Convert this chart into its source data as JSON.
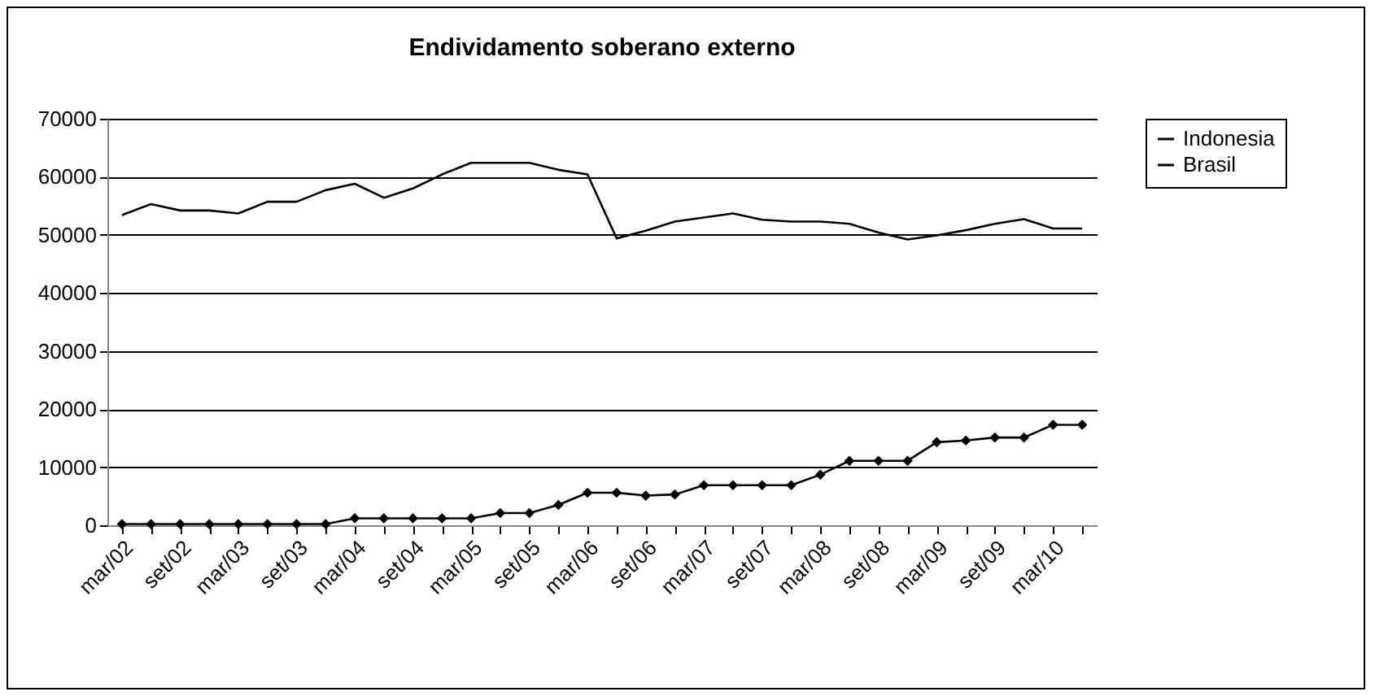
{
  "chart_data": {
    "type": "line",
    "title": "Endividamento soberano externo",
    "categories": [
      "mar/02",
      null,
      "set/02",
      null,
      "mar/03",
      null,
      "set/03",
      null,
      "mar/04",
      null,
      "set/04",
      null,
      "mar/05",
      null,
      "set/05",
      null,
      "mar/06",
      null,
      "set/06",
      null,
      "mar/07",
      null,
      "set/07",
      null,
      "mar/08",
      null,
      "set/08",
      null,
      "mar/09",
      null,
      "set/09",
      null,
      "mar/10",
      null
    ],
    "series": [
      {
        "name": "Indonesia",
        "color": "#000000",
        "marker": "diamond",
        "values": [
          200,
          200,
          200,
          200,
          200,
          200,
          200,
          200,
          1200,
          1200,
          1200,
          1200,
          1200,
          2100,
          2100,
          3500,
          5600,
          5600,
          5100,
          5300,
          6900,
          6900,
          6900,
          6900,
          8700,
          11100,
          11100,
          11100,
          14300,
          14600,
          15100,
          15100,
          17300,
          17300
        ]
      },
      {
        "name": "Brasil",
        "color": "#000000",
        "values": [
          53400,
          55300,
          54200,
          54200,
          53700,
          55700,
          55700,
          57700,
          58800,
          56400,
          58000,
          60400,
          62400,
          62400,
          62400,
          61200,
          60400,
          49400,
          50700,
          52300,
          53000,
          53700,
          52600,
          52300,
          52300,
          51900,
          50400,
          49200,
          49900,
          50800,
          51900,
          52700,
          51100,
          51100
        ]
      }
    ],
    "ylim": [
      0,
      70000
    ],
    "yticks": [
      0,
      10000,
      20000,
      30000,
      40000,
      50000,
      60000,
      70000
    ],
    "grid": "y",
    "legend": "right"
  }
}
